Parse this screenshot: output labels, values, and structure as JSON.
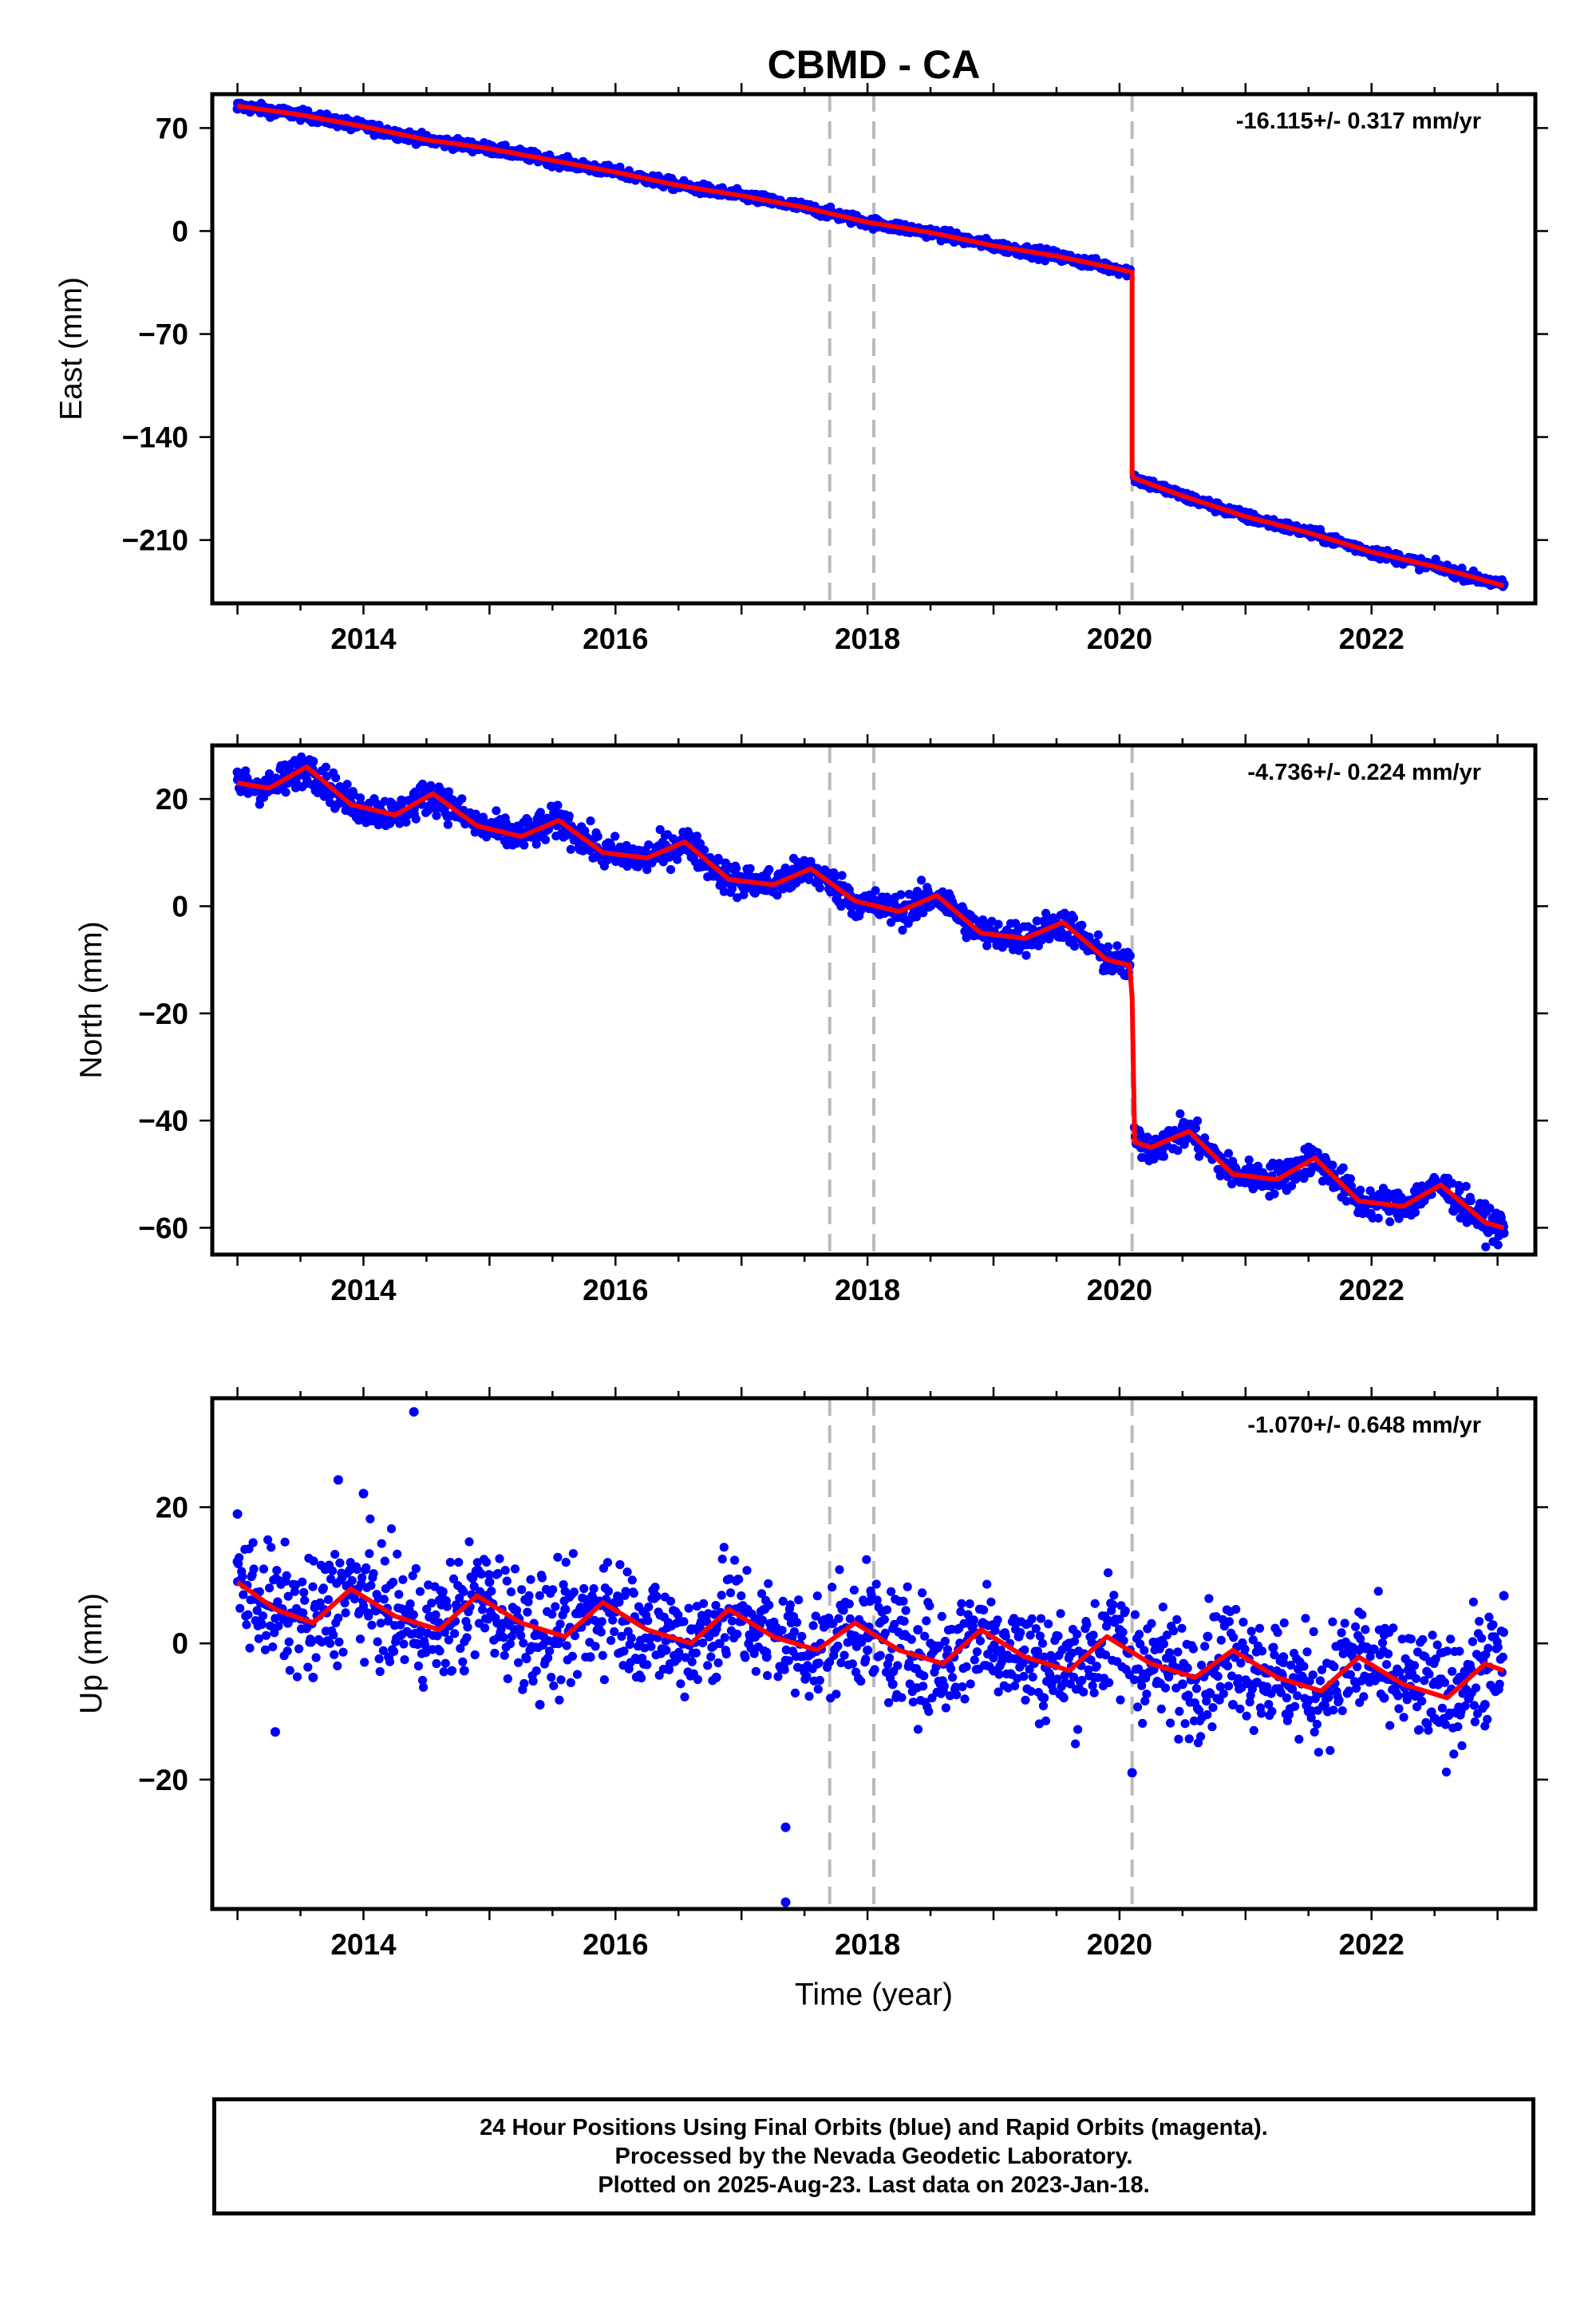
{
  "figure_title": "CBMD - CA",
  "caption": [
    "24 Hour Positions Using Final Orbits (blue) and Rapid Orbits (magenta).",
    "Processed by the Nevada Geodetic Laboratory.",
    "Plotted on 2025-Aug-23. Last data on 2023-Jan-18."
  ],
  "colors": {
    "observations": "#0000ff",
    "model": "#ff0000",
    "event_lines": "#bbbbbb",
    "frame": "#000000"
  },
  "chart_data": [
    {
      "type": "scatter",
      "panel": "east",
      "ylabel": "East (mm)",
      "xlabel": "",
      "rate_label": "-16.115+/- 0.317 mm/yr",
      "xlim": [
        2012.8,
        2023.3
      ],
      "ylim": [
        -253,
        93
      ],
      "xticks": [
        2014,
        2016,
        2018,
        2020,
        2022
      ],
      "xtick_labels": [
        "2014",
        "2016",
        "2018",
        "2020",
        "2022"
      ],
      "yticks": [
        70,
        0,
        -70,
        -140,
        -210
      ],
      "ytick_labels": [
        "70",
        "0",
        "−70",
        "−140",
        "−210"
      ],
      "event_lines": [
        2017.7,
        2018.05,
        2020.1
      ],
      "series": [
        {
          "kind": "points",
          "x": [
            2013.0,
            2013.1,
            2013.3,
            2013.5,
            2013.7,
            2013.9,
            2014.1,
            2014.3,
            2014.5,
            2014.7,
            2014.9,
            2015.1,
            2015.3,
            2015.5,
            2015.7,
            2015.9,
            2016.1,
            2016.3,
            2016.5,
            2016.7,
            2016.9,
            2017.1,
            2017.3,
            2017.5,
            2017.7,
            2017.9,
            2018.1,
            2018.3,
            2018.5,
            2018.7,
            2018.9,
            2019.1,
            2019.3,
            2019.5,
            2019.7,
            2019.9,
            2020.05,
            2020.12,
            2020.3,
            2020.5,
            2020.7,
            2020.9,
            2021.1,
            2021.3,
            2021.5,
            2021.7,
            2021.9,
            2022.1,
            2022.3,
            2022.5,
            2022.7,
            2022.9,
            2023.05
          ],
          "y": [
            83,
            81,
            79,
            80,
            74,
            69,
            67,
            64,
            61,
            58,
            56,
            53,
            49,
            47,
            44,
            40,
            36,
            32,
            31,
            28,
            24,
            21,
            18,
            17,
            15,
            10,
            6,
            2,
            -1,
            -5,
            -9,
            -12,
            -16,
            -18,
            -21,
            -25,
            -28,
            -166,
            -174,
            -180,
            -186,
            -192,
            -198,
            -201,
            -206,
            -210,
            -214,
            -220,
            -224,
            -227,
            -231,
            -236,
            -240
          ]
        },
        {
          "kind": "line",
          "x": [
            2013.0,
            2013.5,
            2014.0,
            2014.5,
            2015.0,
            2015.5,
            2016.0,
            2016.5,
            2017.0,
            2017.5,
            2018.0,
            2018.5,
            2019.0,
            2019.5,
            2020.0,
            2020.1,
            2020.1,
            2020.12,
            2020.5,
            2021.0,
            2021.5,
            2022.0,
            2022.5,
            2023.05
          ],
          "y": [
            85,
            79,
            71,
            62,
            56,
            48,
            40,
            31,
            24,
            16,
            6,
            -1,
            -10,
            -17,
            -26,
            -28,
            -166,
            -168,
            -180,
            -194,
            -205,
            -218,
            -228,
            -241
          ]
        }
      ]
    },
    {
      "type": "scatter",
      "panel": "north",
      "ylabel": "North (mm)",
      "xlabel": "",
      "rate_label": "-4.736+/- 0.224 mm/yr",
      "xlim": [
        2012.8,
        2023.3
      ],
      "ylim": [
        -65,
        30
      ],
      "xticks": [
        2014,
        2016,
        2018,
        2020,
        2022
      ],
      "xtick_labels": [
        "2014",
        "2016",
        "2018",
        "2020",
        "2022"
      ],
      "yticks": [
        20,
        0,
        -20,
        -40,
        -60
      ],
      "ytick_labels": [
        "20",
        "0",
        "−20",
        "−40",
        "−60"
      ],
      "event_lines": [
        2017.7,
        2018.05,
        2020.1
      ],
      "series": [
        {
          "kind": "points",
          "x": [
            2013.0,
            2013.2,
            2013.4,
            2013.6,
            2013.8,
            2014.0,
            2014.2,
            2014.4,
            2014.6,
            2014.8,
            2015.0,
            2015.2,
            2015.4,
            2015.6,
            2015.8,
            2016.0,
            2016.2,
            2016.4,
            2016.6,
            2016.8,
            2017.0,
            2017.2,
            2017.4,
            2017.6,
            2017.8,
            2018.0,
            2018.2,
            2018.4,
            2018.6,
            2018.8,
            2019.0,
            2019.2,
            2019.4,
            2019.6,
            2019.8,
            2020.0,
            2020.08,
            2020.15,
            2020.3,
            2020.5,
            2020.7,
            2020.9,
            2021.1,
            2021.3,
            2021.5,
            2021.7,
            2021.9,
            2022.1,
            2022.3,
            2022.5,
            2022.7,
            2022.9,
            2023.05
          ],
          "y": [
            25,
            22,
            23,
            27,
            21,
            18,
            17,
            18,
            22,
            17,
            14,
            13,
            13,
            17,
            11,
            9,
            8,
            10,
            13,
            6,
            4,
            3,
            5,
            7,
            3,
            1,
            -1,
            -1,
            1,
            -4,
            -6,
            -6,
            -5,
            -3,
            -8,
            -10,
            -11,
            -43,
            -45,
            -41,
            -46,
            -50,
            -51,
            -50,
            -45,
            -50,
            -54,
            -55,
            -56,
            -51,
            -55,
            -60,
            -61
          ]
        },
        {
          "kind": "line",
          "x": [
            2013.0,
            2013.25,
            2013.55,
            2013.9,
            2014.25,
            2014.55,
            2014.9,
            2015.25,
            2015.55,
            2015.9,
            2016.25,
            2016.55,
            2016.9,
            2017.25,
            2017.55,
            2017.9,
            2018.25,
            2018.55,
            2018.9,
            2019.25,
            2019.55,
            2019.9,
            2020.08,
            2020.1,
            2020.12,
            2020.25,
            2020.55,
            2020.9,
            2021.25,
            2021.55,
            2021.9,
            2022.25,
            2022.55,
            2022.9,
            2023.05
          ],
          "y": [
            23,
            22,
            26,
            19,
            17,
            21,
            15,
            13,
            16,
            10,
            9,
            12,
            5,
            4,
            7,
            1,
            -1,
            2,
            -5,
            -6,
            -3,
            -10,
            -11,
            -17,
            -44,
            -45,
            -42,
            -50,
            -51,
            -47,
            -55,
            -56,
            -52,
            -59,
            -60
          ]
        }
      ]
    },
    {
      "type": "scatter",
      "panel": "up",
      "ylabel": "Up (mm)",
      "xlabel": "Time (year)",
      "rate_label": "-1.070+/- 0.648 mm/yr",
      "xlim": [
        2012.8,
        2023.3
      ],
      "ylim": [
        -39,
        36
      ],
      "xticks": [
        2014,
        2016,
        2018,
        2020,
        2022
      ],
      "xtick_labels": [
        "2014",
        "2016",
        "2018",
        "2020",
        "2022"
      ],
      "yticks": [
        20,
        0,
        -20
      ],
      "ytick_labels": [
        "20",
        "0",
        "−20"
      ],
      "event_lines": [
        2017.7,
        2018.05,
        2020.1
      ],
      "series": [
        {
          "kind": "points",
          "x": [
            2013.0,
            2013.0,
            2013.3,
            2013.4,
            2013.6,
            2013.8,
            2013.9,
            2014.0,
            2014.2,
            2014.4,
            2014.6,
            2014.8,
            2015.0,
            2015.2,
            2015.4,
            2015.6,
            2015.8,
            2016.0,
            2016.2,
            2016.4,
            2016.6,
            2016.8,
            2017.0,
            2017.2,
            2017.35,
            2017.4,
            2017.6,
            2017.8,
            2018.0,
            2018.2,
            2018.4,
            2018.6,
            2018.8,
            2019.0,
            2019.2,
            2019.4,
            2019.6,
            2019.8,
            2020.0,
            2020.1,
            2020.3,
            2020.5,
            2020.7,
            2020.9,
            2021.1,
            2021.3,
            2021.5,
            2021.7,
            2021.9,
            2022.1,
            2022.3,
            2022.5,
            2022.7,
            2022.9,
            2023.05,
            2014.4,
            2017.35
          ],
          "y": [
            19,
            12,
            -13,
            3,
            -5,
            24,
            8,
            22,
            -2,
            0,
            3,
            -4,
            9,
            2,
            -9,
            5,
            -2,
            6,
            3,
            -1,
            2,
            -5,
            4,
            -2,
            -27,
            1,
            -3,
            5,
            -1,
            -6,
            2,
            -7,
            3,
            -4,
            1,
            -8,
            0,
            -5,
            2,
            -19,
            -3,
            -6,
            1,
            -9,
            -4,
            -2,
            -10,
            -6,
            -1,
            -8,
            -3,
            -11,
            -5,
            -9,
            7,
            34,
            -38
          ]
        },
        {
          "kind": "line",
          "x": [
            2013.0,
            2013.3,
            2013.6,
            2013.9,
            2014.25,
            2014.6,
            2014.9,
            2015.25,
            2015.6,
            2015.9,
            2016.25,
            2016.6,
            2016.9,
            2017.25,
            2017.6,
            2017.9,
            2018.25,
            2018.6,
            2018.9,
            2019.25,
            2019.6,
            2019.9,
            2020.25,
            2020.6,
            2020.9,
            2021.25,
            2021.6,
            2021.9,
            2022.25,
            2022.6,
            2022.9,
            2023.05
          ],
          "y": [
            9,
            5,
            3,
            8,
            4,
            2,
            7,
            3,
            1,
            6,
            2,
            0,
            5,
            1,
            -1,
            3,
            -1,
            -3,
            2,
            -2,
            -4,
            1,
            -3,
            -5,
            -1,
            -5,
            -7,
            -2,
            -6,
            -8,
            -3,
            -4
          ]
        }
      ]
    }
  ]
}
